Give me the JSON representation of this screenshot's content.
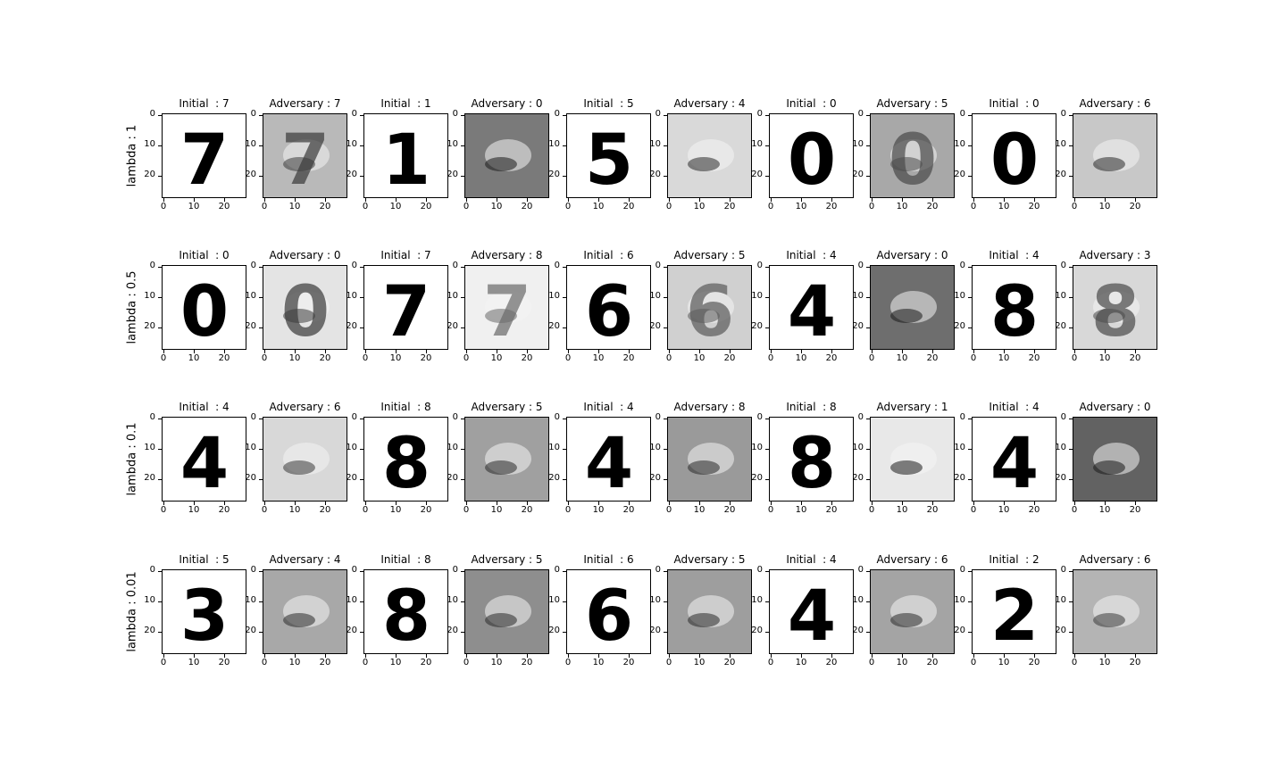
{
  "figure": {
    "row_labels": [
      "lambda : 1",
      "lambda : 0.5",
      "lambda : 0.1",
      "lambda : 0.01"
    ],
    "y_ticks": [
      "0",
      "10",
      "20"
    ],
    "x_ticks": [
      "0",
      "10",
      "20"
    ],
    "rows": [
      {
        "titles": [
          "Initial  : 7",
          "Adversary : 7",
          "Initial  : 1",
          "Adversary : 0",
          "Initial  : 5",
          "Adversary : 4",
          "Initial  : 0",
          "Adversary : 5",
          "Initial  : 0",
          "Adversary : 6"
        ],
        "digits": [
          "7",
          "7",
          "1",
          "",
          "5",
          "",
          "0",
          "0",
          "0",
          ""
        ],
        "backgrounds": [
          "#ffffff",
          "#b9b9b9",
          "#ffffff",
          "#7a7a7a",
          "#ffffff",
          "#d9d9d9",
          "#ffffff",
          "#a8a8a8",
          "#ffffff",
          "#c8c8c8"
        ],
        "ink": [
          "#000000",
          "#3a3a3a",
          "#000000",
          "#1a1a1a",
          "#000000",
          "#2a2a2a",
          "#000000",
          "#4a4a4a",
          "#000000",
          "#2a2a2a"
        ]
      },
      {
        "titles": [
          "Initial  : 0",
          "Adversary : 0",
          "Initial  : 7",
          "Adversary : 8",
          "Initial  : 6",
          "Adversary : 5",
          "Initial  : 4",
          "Adversary : 0",
          "Initial  : 4",
          "Adversary : 3"
        ],
        "digits": [
          "0",
          "0",
          "7",
          "7",
          "6",
          "6",
          "4",
          "",
          "8",
          "8"
        ],
        "backgrounds": [
          "#ffffff",
          "#e4e4e4",
          "#ffffff",
          "#f0f0f0",
          "#ffffff",
          "#d0d0d0",
          "#ffffff",
          "#6e6e6e",
          "#ffffff",
          "#d8d8d8"
        ],
        "ink": [
          "#000000",
          "#3a3a3a",
          "#000000",
          "#6a6a6a",
          "#000000",
          "#5a5a5a",
          "#000000",
          "#1a1a1a",
          "#000000",
          "#4a4a4a"
        ]
      },
      {
        "titles": [
          "Initial  : 4",
          "Adversary : 6",
          "Initial  : 8",
          "Adversary : 5",
          "Initial  : 4",
          "Adversary : 8",
          "Initial  : 8",
          "Adversary : 1",
          "Initial  : 4",
          "Adversary : 0"
        ],
        "digits": [
          "4",
          "",
          "8",
          "",
          "4",
          "",
          "8",
          "",
          "4",
          ""
        ],
        "backgrounds": [
          "#ffffff",
          "#d8d8d8",
          "#ffffff",
          "#a0a0a0",
          "#ffffff",
          "#9a9a9a",
          "#ffffff",
          "#e8e8e8",
          "#ffffff",
          "#626262"
        ],
        "ink": [
          "#000000",
          "#3a3a3a",
          "#000000",
          "#2a2a2a",
          "#000000",
          "#2a2a2a",
          "#000000",
          "#1a1a1a",
          "#000000",
          "#1a1a1a"
        ]
      },
      {
        "titles": [
          "Initial  : 5",
          "Adversary : 4",
          "Initial  : 8",
          "Adversary : 5",
          "Initial  : 6",
          "Adversary : 5",
          "Initial  : 4",
          "Adversary : 6",
          "Initial  : 2",
          "Adversary : 6"
        ],
        "digits": [
          "3",
          "",
          "8",
          "",
          "6",
          "",
          "4",
          "",
          "2",
          ""
        ],
        "backgrounds": [
          "#ffffff",
          "#a8a8a8",
          "#ffffff",
          "#8e8e8e",
          "#ffffff",
          "#9e9e9e",
          "#ffffff",
          "#a4a4a4",
          "#ffffff",
          "#b4b4b4"
        ],
        "ink": [
          "#000000",
          "#2a2a2a",
          "#000000",
          "#2a2a2a",
          "#000000",
          "#2a2a2a",
          "#000000",
          "#2a2a2a",
          "#000000",
          "#3a3a3a"
        ]
      }
    ]
  }
}
